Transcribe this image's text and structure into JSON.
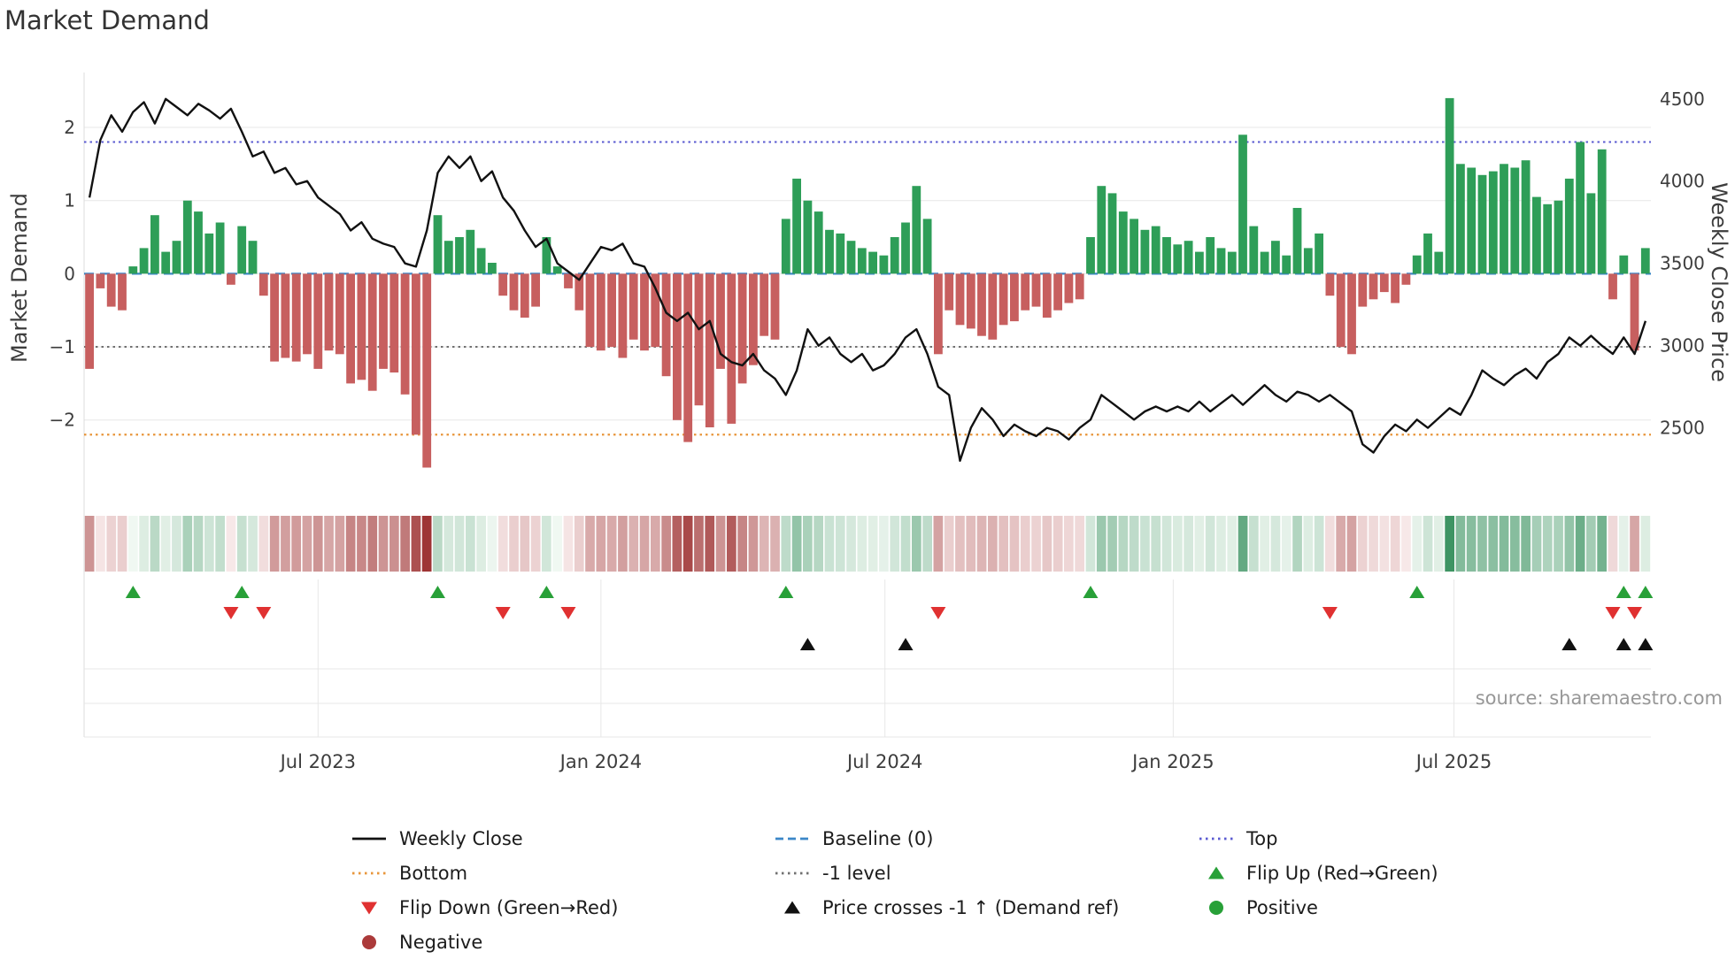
{
  "chart_data": {
    "type": "bar",
    "title": "Market Demand",
    "ylabel_left": "Market Demand",
    "ylabel_right": "Weekly Close Price",
    "source_text": "source: sharemaestro.com",
    "x_tick_labels": [
      "Jul 2023",
      "Jan 2024",
      "Jul 2024",
      "Jan 2025",
      "Jul 2025"
    ],
    "x_tick_week_positions": [
      21.0,
      47.0,
      73.1,
      99.6,
      125.4
    ],
    "left_tick_values": [
      2,
      1,
      0,
      -1,
      -2
    ],
    "left_tick_labels": [
      "2",
      "1",
      "0",
      "−1",
      "−2"
    ],
    "right_tick_values": [
      4500,
      4000,
      3500,
      3000,
      2500
    ],
    "right_tick_labels": [
      "4500",
      "4000",
      "3500",
      "3000",
      "2500"
    ],
    "ylim_left": [
      -2.85,
      2.75
    ],
    "ylim_right": [
      2170,
      4660
    ],
    "baseline": 0,
    "top_level": 1.8,
    "minus1_level": -1,
    "bottom_level": -2.2,
    "grid": "on",
    "legend_position": "bottom",
    "heatmap_source": "demand",
    "series": [
      {
        "name": "Market Demand",
        "type": "bar",
        "axis": "left",
        "values": [
          -1.3,
          -0.2,
          -0.45,
          -0.5,
          0.1,
          0.35,
          0.8,
          0.3,
          0.45,
          1.0,
          0.85,
          0.55,
          0.7,
          -0.15,
          0.65,
          0.45,
          -0.3,
          -1.2,
          -1.15,
          -1.2,
          -1.1,
          -1.3,
          -1.05,
          -1.1,
          -1.5,
          -1.45,
          -1.6,
          -1.3,
          -1.35,
          -1.65,
          -2.2,
          -2.65,
          0.8,
          0.45,
          0.5,
          0.6,
          0.35,
          0.15,
          -0.3,
          -0.5,
          -0.6,
          -0.45,
          0.5,
          0.1,
          -0.2,
          -0.5,
          -1.0,
          -1.05,
          -1.0,
          -1.15,
          -0.9,
          -1.05,
          -1.0,
          -1.4,
          -2.0,
          -2.3,
          -1.8,
          -2.1,
          -1.3,
          -2.05,
          -1.5,
          -1.25,
          -0.85,
          -0.9,
          0.75,
          1.3,
          1.0,
          0.85,
          0.6,
          0.55,
          0.45,
          0.35,
          0.3,
          0.25,
          0.5,
          0.7,
          1.2,
          0.75,
          -1.1,
          -0.5,
          -0.7,
          -0.75,
          -0.85,
          -0.9,
          -0.7,
          -0.65,
          -0.5,
          -0.45,
          -0.6,
          -0.5,
          -0.4,
          -0.35,
          0.5,
          1.2,
          1.1,
          0.85,
          0.75,
          0.6,
          0.65,
          0.5,
          0.4,
          0.45,
          0.3,
          0.5,
          0.35,
          0.3,
          1.9,
          0.65,
          0.3,
          0.45,
          0.25,
          0.9,
          0.35,
          0.55,
          -0.3,
          -1.0,
          -1.1,
          -0.45,
          -0.35,
          -0.25,
          -0.4,
          -0.15,
          0.25,
          0.55,
          0.3,
          2.4,
          1.5,
          1.45,
          1.35,
          1.4,
          1.5,
          1.45,
          1.55,
          1.05,
          0.95,
          1.0,
          1.3,
          1.8,
          1.1,
          1.7,
          -0.35,
          0.25,
          -1.05,
          0.35
        ]
      },
      {
        "name": "Weekly Close",
        "type": "line",
        "axis": "right",
        "values": [
          3900,
          4250,
          4400,
          4300,
          4420,
          4480,
          4350,
          4500,
          4450,
          4400,
          4470,
          4430,
          4380,
          4440,
          4300,
          4150,
          4180,
          4050,
          4080,
          3980,
          4000,
          3900,
          3850,
          3800,
          3700,
          3750,
          3650,
          3620,
          3600,
          3500,
          3480,
          3700,
          4050,
          4150,
          4080,
          4150,
          4000,
          4060,
          3900,
          3820,
          3700,
          3600,
          3650,
          3500,
          3450,
          3400,
          3500,
          3600,
          3580,
          3620,
          3500,
          3480,
          3350,
          3200,
          3150,
          3200,
          3100,
          3150,
          2950,
          2900,
          2880,
          2950,
          2850,
          2800,
          2700,
          2850,
          3100,
          3000,
          3050,
          2950,
          2900,
          2950,
          2850,
          2880,
          2950,
          3050,
          3100,
          2950,
          2750,
          2700,
          2300,
          2500,
          2620,
          2550,
          2450,
          2520,
          2480,
          2450,
          2500,
          2480,
          2430,
          2500,
          2550,
          2700,
          2650,
          2600,
          2550,
          2600,
          2630,
          2600,
          2630,
          2600,
          2660,
          2600,
          2650,
          2700,
          2640,
          2700,
          2760,
          2700,
          2660,
          2720,
          2700,
          2660,
          2700,
          2650,
          2600,
          2400,
          2350,
          2450,
          2520,
          2480,
          2550,
          2500,
          2560,
          2620,
          2580,
          2700,
          2850,
          2800,
          2760,
          2820,
          2860,
          2800,
          2900,
          2950,
          3050,
          3000,
          3060,
          3000,
          2950,
          3050,
          2950,
          3150
        ]
      }
    ],
    "markers": {
      "flip_up_weeks": [
        4,
        14,
        32,
        42,
        64,
        92,
        122,
        141,
        143
      ],
      "flip_down_weeks": [
        13,
        16,
        38,
        44,
        78,
        114,
        140,
        142
      ],
      "price_cross_weeks": [
        66,
        75,
        136,
        141,
        143
      ]
    },
    "colors": {
      "bar_positive": "#2e9e58",
      "bar_negative": "#c75f5f",
      "weekly_close_line": "#111111",
      "baseline": "#3b87c8",
      "top": "#5a5ad1",
      "minus1": "#707070",
      "bottom": "#e8953a",
      "flip_up": "#28a038",
      "flip_down": "#e03131",
      "price_cross": "#111111",
      "positive_dot": "#28a038",
      "negative_dot": "#ab3a3a",
      "heat_pos": "#2e8b57",
      "heat_neg": "#9e3434",
      "grid": "#e7e7e7",
      "tick_text": "#3d3d3d"
    }
  },
  "legend": {
    "items": [
      {
        "label": "Weekly Close"
      },
      {
        "label": "Bottom"
      },
      {
        "label": "Flip Down (Green→Red)"
      },
      {
        "label": "Negative"
      },
      {
        "label": "Baseline (0)"
      },
      {
        "label": "-1 level"
      },
      {
        "label": "Price crosses -1 ↑ (Demand ref)"
      },
      {
        "label": "Top"
      },
      {
        "label": "Flip Up (Red→Green)"
      },
      {
        "label": "Positive"
      }
    ]
  }
}
